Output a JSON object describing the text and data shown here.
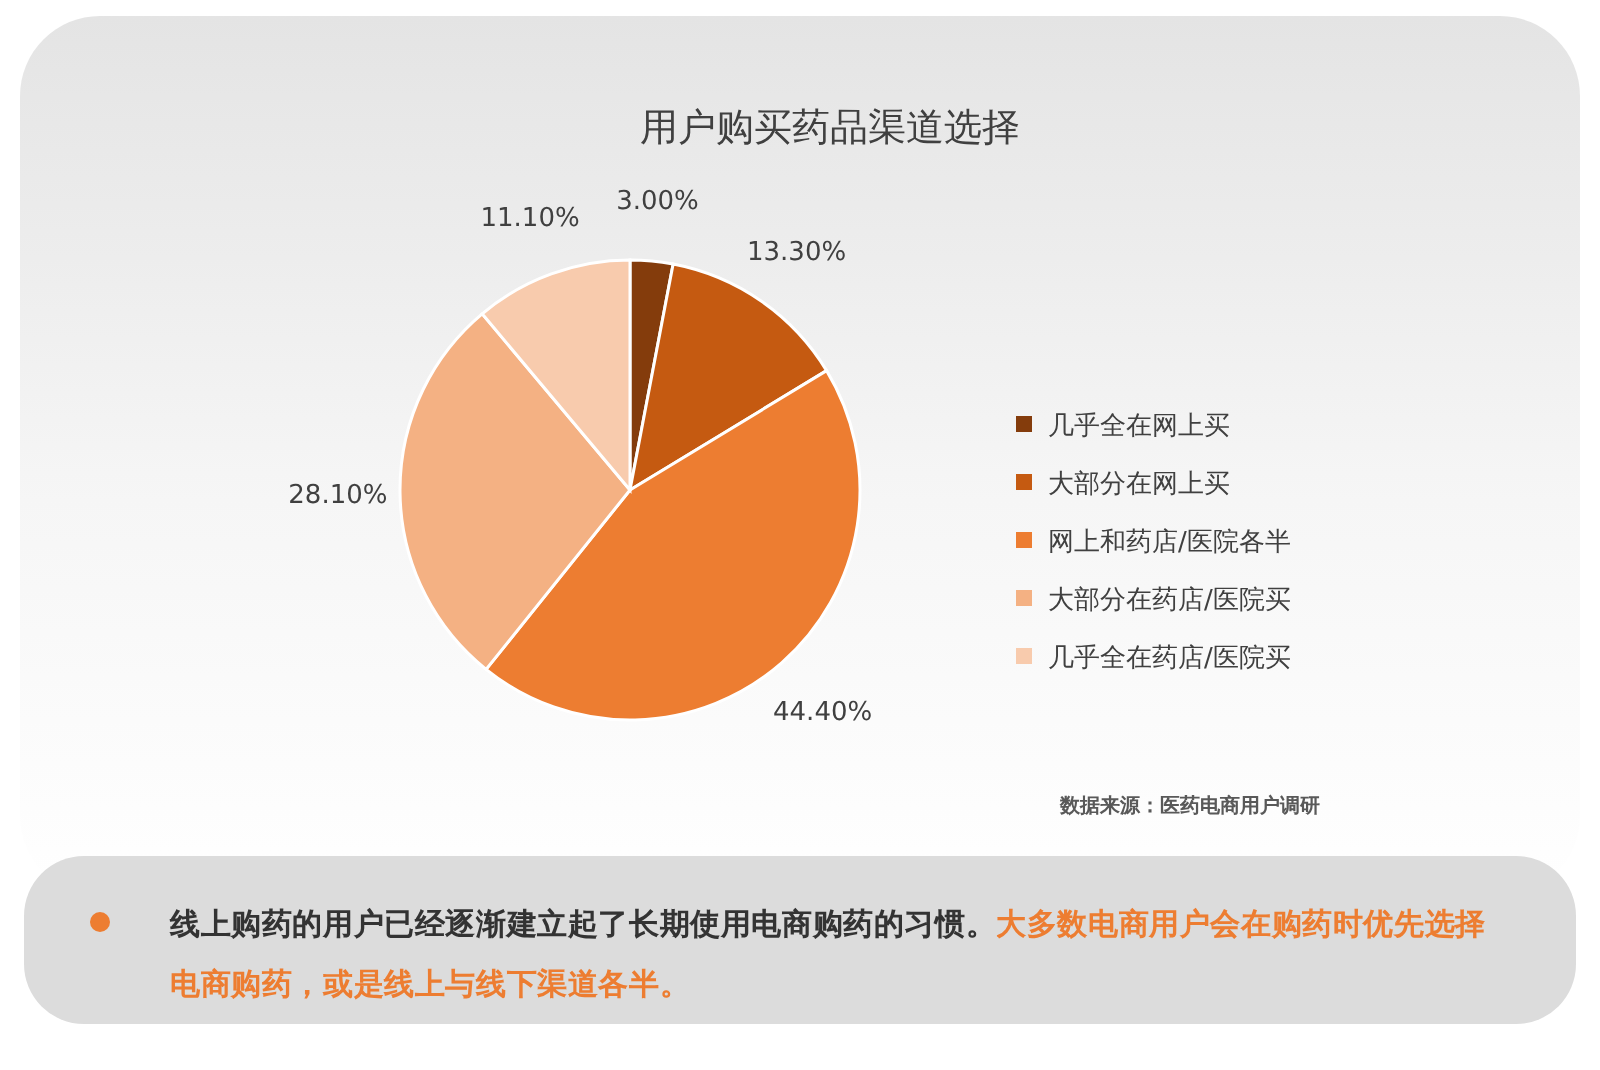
{
  "chart_data": {
    "type": "pie",
    "title": "用户购买药品渠道选择",
    "categories": [
      "几乎全在网上买",
      "大部分在网上买",
      "网上和药店/医院各半",
      "大部分在药店/医院买",
      "几乎全在药店/医院买"
    ],
    "values": [
      3.0,
      13.3,
      44.4,
      28.1,
      11.1
    ],
    "value_labels": [
      "3.00%",
      "13.30%",
      "44.40%",
      "28.10%",
      "11.10%"
    ],
    "colors": [
      "#843c0c",
      "#c55a11",
      "#ed7d31",
      "#f4b183",
      "#f8cbad"
    ],
    "legend": "right",
    "annotations": [
      "数据来源：医药电商用户调研",
      "线上购药的用户已经逐渐建立起了长期使用电商购药的习惯。",
      "大多数电商用户会在购药时优先选择电商购药，或是线上与线下渠道各半。"
    ]
  }
}
